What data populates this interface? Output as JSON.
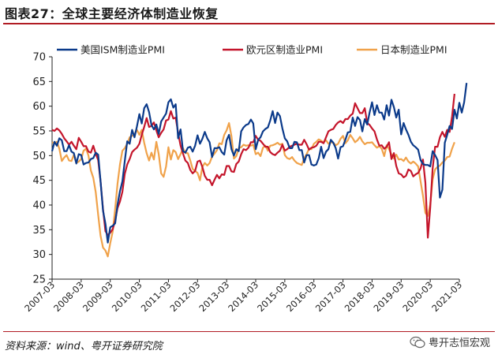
{
  "figure": {
    "title": "图表27：全球主要经济体制造业恢复",
    "source": "资料来源：wind、粤开证券研究院",
    "watermark": "粤开志恒宏观",
    "watermark_icon": "wechat-icon"
  },
  "chart_data": {
    "type": "line",
    "title": "图表27：全球主要经济体制造业恢复",
    "xlabel": "",
    "ylabel": "",
    "ylim": [
      25,
      70
    ],
    "yticks": [
      25,
      30,
      35,
      40,
      45,
      50,
      55,
      60,
      65,
      70
    ],
    "x_tick_labels": [
      "2007-03",
      "2008-03",
      "2009-03",
      "2010-03",
      "2011-03",
      "2012-03",
      "2013-03",
      "2014-03",
      "2015-03",
      "2016-03",
      "2017-03",
      "2018-03",
      "2019-03",
      "2020-03",
      "2021-03"
    ],
    "x_start": "2007-03",
    "x_end": "2021-03",
    "legend_position": "top",
    "series": [
      {
        "name": "美国ISM制造业PMI",
        "color": "#0b3a8a",
        "values": [
          50.9,
          52.8,
          52.0,
          53.5,
          53.1,
          50.9,
          50.9,
          52.1,
          50.8,
          50.5,
          48.4,
          50.3,
          50.1,
          48.2,
          48.5,
          48.6,
          49.3,
          49.5,
          50.6,
          50.2,
          44.8,
          38.9,
          36.2,
          32.4,
          35.5,
          35.8,
          36.3,
          40.1,
          42.8,
          44.8,
          48.9,
          52.9,
          52.4,
          55.2,
          53.7,
          55.9,
          58.4,
          56.5,
          59.6,
          60.4,
          58.8,
          56.2,
          55.3,
          56.3,
          54.4,
          56.9,
          57.7,
          58.5,
          60.8,
          61.4,
          59.7,
          60.4,
          53.5,
          55.3,
          50.9,
          50.6,
          51.6,
          51.8,
          50.8,
          52.0,
          54.1,
          52.4,
          53.4,
          54.8,
          53.5,
          52.7,
          49.7,
          51.5,
          51.5,
          51.7,
          50.7,
          50.2,
          53.1,
          54.2,
          51.3,
          50.0,
          51.3,
          50.9,
          54.9,
          55.7,
          56.2,
          56.4,
          57.3,
          56.5,
          51.3,
          53.2,
          53.7,
          54.9,
          55.4,
          55.7,
          57.1,
          59.0,
          56.6,
          58.7,
          58.0,
          55.5,
          53.5,
          52.9,
          51.5,
          51.5,
          52.8,
          52.7,
          51.1,
          51.1,
          48.6,
          50.1,
          50.1,
          48.2,
          48.0,
          48.2,
          49.5,
          51.8,
          49.5,
          50.8,
          51.3,
          53.2,
          52.6,
          51.5,
          49.4,
          51.7,
          51.9,
          53.2,
          54.7,
          54.8,
          57.7,
          56.0,
          57.8,
          57.2,
          54.9,
          57.4,
          56.3,
          58.8,
          60.8,
          58.2,
          60.2,
          58.7,
          58.7,
          57.3,
          60.2,
          58.1,
          61.3,
          59.8,
          57.7,
          59.3,
          54.3,
          56.6,
          55.3,
          54.2,
          52.8,
          52.1,
          51.7,
          51.2,
          49.1,
          48.3,
          48.1,
          48.1,
          47.8,
          50.9,
          50.1,
          49.1,
          41.5,
          43.1,
          52.6,
          54.2,
          56.0,
          55.4,
          59.3,
          57.5,
          60.7,
          58.7,
          60.8,
          64.7
        ]
      },
      {
        "name": "欧元区制造业PMI",
        "color": "#c4152b",
        "values": [
          55.2,
          55.0,
          55.5,
          55.1,
          54.4,
          53.5,
          52.9,
          52.2,
          52.8,
          52.0,
          51.3,
          53.6,
          52.8,
          51.9,
          51.9,
          50.8,
          50.6,
          52.0,
          50.4,
          49.1,
          44.8,
          39.2,
          34.7,
          33.9,
          34.4,
          35.1,
          36.8,
          39.4,
          40.7,
          42.7,
          46.3,
          48.2,
          49.3,
          50.7,
          51.2,
          51.6,
          52.4,
          54.2,
          55.8,
          57.6,
          55.8,
          56.0,
          56.7,
          55.1,
          53.7,
          54.6,
          55.3,
          57.1,
          57.3,
          59.0,
          57.5,
          57.7,
          54.6,
          52.0,
          50.4,
          49.0,
          48.5,
          47.1,
          46.4,
          46.9,
          48.8,
          49.0,
          47.7,
          45.9,
          45.1,
          45.1,
          44.0,
          45.1,
          46.1,
          45.4,
          46.2,
          46.1,
          47.9,
          47.9,
          46.8,
          46.7,
          48.3,
          48.8,
          50.3,
          51.3,
          51.1,
          51.6,
          52.7,
          52.7,
          54.0,
          53.2,
          53.0,
          52.4,
          51.8,
          51.8,
          50.7,
          50.3,
          50.1,
          50.6,
          51.0,
          52.2,
          51.0,
          51.3,
          51.8,
          52.0,
          52.2,
          52.4,
          52.2,
          52.2,
          53.2,
          52.3,
          51.2,
          51.6,
          51.7,
          52.0,
          52.8,
          52.8,
          52.5,
          53.7,
          54.9,
          55.2,
          55.4,
          56.2,
          56.7,
          57.0,
          56.6,
          57.4,
          57.4,
          58.1,
          58.5,
          60.6,
          59.6,
          58.6,
          58.6,
          59.6,
          56.6,
          56.2,
          55.5,
          54.9,
          53.3,
          52.0,
          52.1,
          51.4,
          51.8,
          52.7,
          49.3,
          50.5,
          47.9,
          46.4,
          46.2,
          45.6,
          45.9,
          47.2,
          46.9,
          45.8,
          46.2,
          46.5,
          47.4,
          49.2,
          44.5,
          33.4,
          39.4,
          47.4,
          51.8,
          51.8,
          53.7,
          54.8,
          53.8,
          55.2,
          54.8,
          57.9,
          62.5
        ]
      },
      {
        "name": "日本制造业PMI",
        "color": "#f0a24a",
        "values": [
          52.7,
          52.5,
          52.8,
          51.4,
          48.9,
          49.6,
          50.1,
          49.0,
          48.9,
          50.2,
          48.5,
          48.8,
          49.3,
          51.0,
          51.4,
          50.0,
          47.0,
          45.5,
          42.6,
          38.0,
          33.8,
          31.4,
          30.8,
          29.6,
          32.3,
          34.6,
          39.2,
          44.3,
          48.2,
          51.0,
          51.5,
          52.4,
          53.7,
          54.0,
          54.3,
          55.2,
          54.2,
          55.2,
          52.6,
          50.5,
          49.0,
          50.6,
          49.2,
          52.8,
          50.3,
          46.4,
          45.7,
          47.8,
          51.7,
          49.2,
          51.1,
          50.7,
          49.3,
          50.3,
          51.5,
          50.5,
          50.5,
          49.0,
          47.3,
          46.9,
          46.5,
          45.0,
          47.7,
          48.5,
          48.0,
          48.5,
          49.8,
          50.4,
          51.1,
          52.5,
          52.3,
          54.2,
          55.1,
          56.6,
          53.9,
          49.4,
          49.9,
          51.5,
          51.7,
          52.2,
          52.0,
          52.1,
          52.0,
          52.2,
          50.3,
          50.6,
          49.9,
          51.6,
          52.0,
          51.0,
          52.0,
          52.1,
          52.3,
          52.6,
          52.2,
          52.4,
          50.1,
          49.5,
          49.3,
          49.7,
          49.0,
          48.5,
          48.3,
          48.1,
          49.5,
          50.3,
          51.4,
          51.3,
          52.4,
          52.8,
          53.3,
          53.0,
          52.7,
          53.1,
          52.4,
          52.7,
          52.6,
          52.1,
          52.4,
          53.4,
          54.0,
          52.5,
          53.1,
          54.2,
          53.5,
          52.7,
          53.1,
          53.8,
          52.9,
          52.3,
          52.6,
          52.6,
          52.7,
          52.1,
          51.6,
          51.9,
          51.4,
          49.9,
          52.1,
          51.3,
          50.2,
          49.4,
          50.2,
          49.2,
          49.3,
          48.9,
          49.6,
          48.8,
          48.4,
          48.8,
          48.4,
          47.8,
          44.8,
          41.9,
          38.4,
          37.8,
          40.1,
          45.2,
          47.2,
          47.7,
          48.0,
          48.6,
          49.0,
          49.7,
          49.8,
          51.4,
          52.7
        ]
      }
    ]
  }
}
